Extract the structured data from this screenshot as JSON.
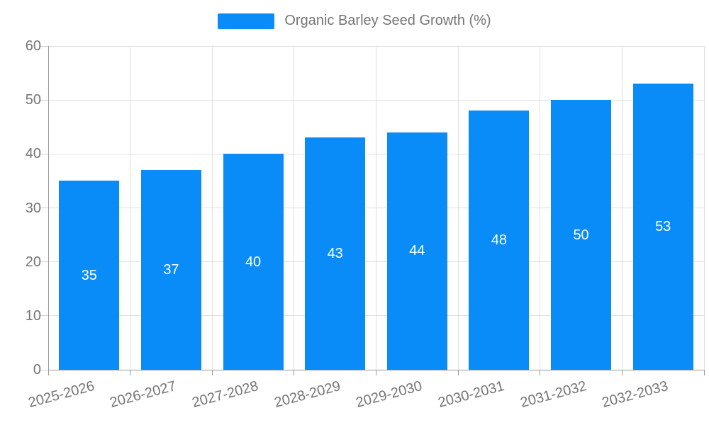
{
  "legend": {
    "label": "Organic Barley Seed Growth (%)"
  },
  "chart_data": {
    "type": "bar",
    "title": "Organic Barley Seed Growth (%)",
    "categories": [
      "2025-2026",
      "2026-2027",
      "2027-2028",
      "2028-2029",
      "2029-2030",
      "2030-2031",
      "2031-2032",
      "2032-2033"
    ],
    "values": [
      35,
      37,
      40,
      43,
      44,
      48,
      50,
      53
    ],
    "xlabel": "",
    "ylabel": "",
    "ylim": [
      0,
      60
    ],
    "y_ticks": [
      0,
      10,
      20,
      30,
      40,
      50,
      60
    ],
    "grid": true,
    "legend_position": "top-center",
    "x_label_rotation_deg": -15,
    "colors": {
      "bar": "#0a8cf8",
      "value_label": "#ffffff",
      "grid_line": "#e0e0e0",
      "axis_line": "#999999",
      "tick_mark": "#d0d0d0",
      "tick_label": "#757575",
      "background": "#ffffff"
    }
  }
}
